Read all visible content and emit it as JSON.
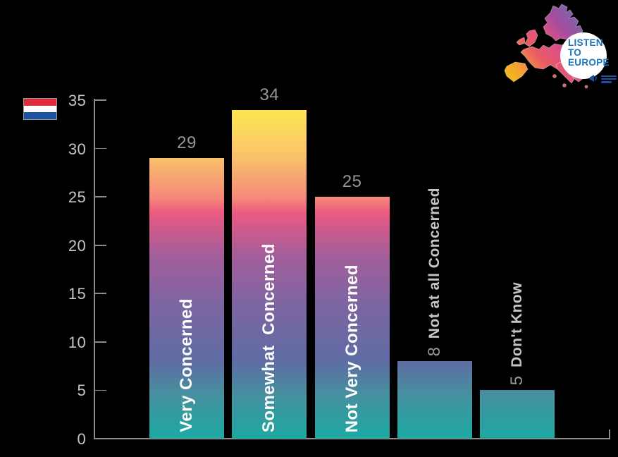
{
  "flag": {
    "country": "Netherlands",
    "colors": {
      "top": "#DD2C3C",
      "middle": "#FFFFFF",
      "bottom": "#1F4FA0"
    }
  },
  "logo": {
    "lines": [
      "LISTEN",
      "TO",
      "EUROPE"
    ],
    "text_color": "#1776BE"
  },
  "chart_data": {
    "type": "bar",
    "title": "",
    "categories": [
      "Very Concerned",
      "Somewhat  Concerned",
      "Not Very Concerned",
      "Not at all Concerned",
      "Don't Know"
    ],
    "values": [
      29,
      34,
      25,
      8,
      5
    ],
    "xlabel": "",
    "ylabel": "",
    "ylim": [
      0,
      35
    ],
    "yticks": [
      0,
      5,
      10,
      15,
      20,
      25,
      30,
      35
    ],
    "grid": false,
    "legend": false,
    "value_labels_shown": true,
    "colors": {
      "axis": "#8C8C8C",
      "tick_label": "#C6C6C6",
      "value_label": "#96969A",
      "category_label_inside": "#FFFFFF",
      "category_label_outside": "#C5C5C5"
    },
    "bar_gradient_stops": [
      {
        "pct": 0,
        "color": "#1CA9A1"
      },
      {
        "pct": 13,
        "color": "#46909F"
      },
      {
        "pct": 23,
        "color": "#5F6CA4"
      },
      {
        "pct": 40,
        "color": "#7E65A2"
      },
      {
        "pct": 54,
        "color": "#A25E9A"
      },
      {
        "pct": 63,
        "color": "#D55A8A"
      },
      {
        "pct": 67,
        "color": "#EE5C80"
      },
      {
        "pct": 71,
        "color": "#F4887A"
      },
      {
        "pct": 83,
        "color": "#F9C16B"
      },
      {
        "pct": 91,
        "color": "#FBD75C"
      },
      {
        "pct": 100,
        "color": "#FFEC4E"
      }
    ]
  }
}
